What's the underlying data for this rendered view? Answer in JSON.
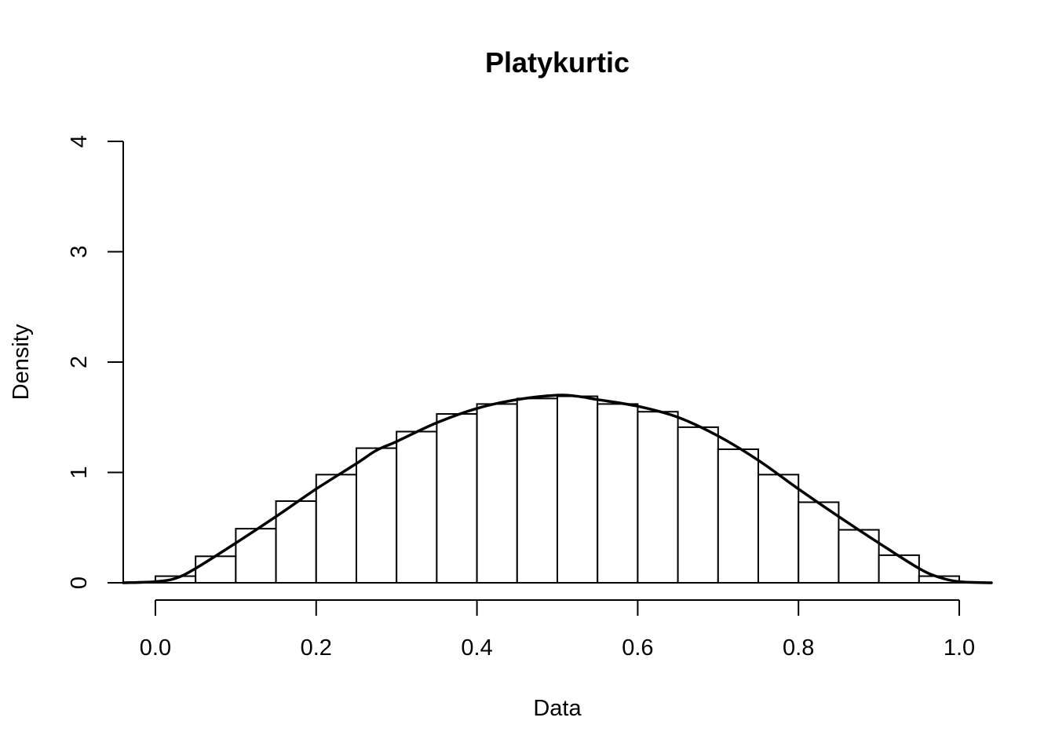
{
  "chart_data": {
    "type": "bar",
    "title": "Platykurtic",
    "xlabel": "Data",
    "ylabel": "Density",
    "xlim": [
      -0.04,
      1.04
    ],
    "ylim": [
      0,
      4
    ],
    "x_ticks": [
      0.0,
      0.2,
      0.4,
      0.6,
      0.8,
      1.0
    ],
    "x_tick_labels": [
      "0.0",
      "0.2",
      "0.4",
      "0.6",
      "0.8",
      "1.0"
    ],
    "y_ticks": [
      0,
      1,
      2,
      3,
      4
    ],
    "y_tick_labels": [
      "0",
      "1",
      "2",
      "3",
      "4"
    ],
    "grid": false,
    "histogram": {
      "bin_width": 0.05,
      "bin_edges": [
        0,
        0.05,
        0.1,
        0.15,
        0.2,
        0.25,
        0.3,
        0.35,
        0.4,
        0.45,
        0.5,
        0.55,
        0.6,
        0.65,
        0.7,
        0.75,
        0.8,
        0.85,
        0.9,
        0.95,
        1.0
      ],
      "densities": [
        0.06,
        0.24,
        0.49,
        0.74,
        0.98,
        1.22,
        1.37,
        1.53,
        1.62,
        1.67,
        1.69,
        1.62,
        1.55,
        1.41,
        1.21,
        0.98,
        0.73,
        0.48,
        0.25,
        0.06
      ]
    },
    "density_curve": {
      "x": [
        -0.04,
        0.0,
        0.025,
        0.05,
        0.1,
        0.15,
        0.2,
        0.25,
        0.275,
        0.3,
        0.35,
        0.4,
        0.45,
        0.5,
        0.525,
        0.55,
        0.6,
        0.65,
        0.7,
        0.75,
        0.8,
        0.85,
        0.9,
        0.95,
        0.975,
        1.0,
        1.04
      ],
      "y": [
        0.0,
        0.01,
        0.04,
        0.13,
        0.36,
        0.6,
        0.85,
        1.08,
        1.2,
        1.28,
        1.45,
        1.58,
        1.66,
        1.7,
        1.69,
        1.66,
        1.6,
        1.5,
        1.33,
        1.11,
        0.85,
        0.6,
        0.36,
        0.13,
        0.05,
        0.01,
        0.0
      ]
    }
  }
}
